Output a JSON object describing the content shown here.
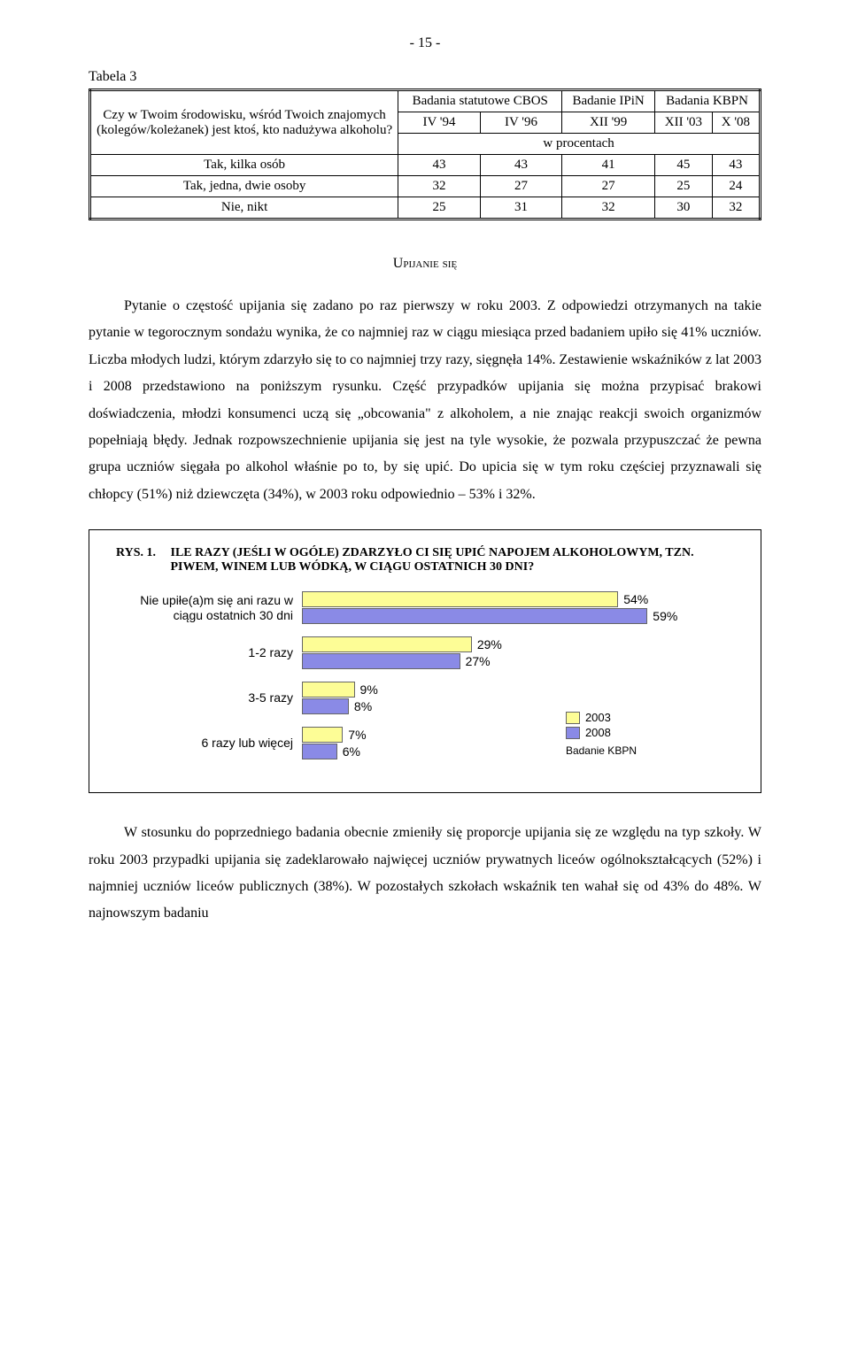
{
  "pageNumber": "- 15 -",
  "table": {
    "caption": "Tabela 3",
    "question": "Czy w Twoim środowisku, wśród Twoich znajomych (kolegów/koleżanek) jest ktoś, kto nadużywa alkoholu?",
    "header1": {
      "col1": "Badania statutowe CBOS",
      "col2": "Badanie IPiN",
      "col3": "Badania KBPN"
    },
    "header2": {
      "c1": "IV '94",
      "c2": "IV '96",
      "c3": "XII '99",
      "c4": "XII '03",
      "c5": "X '08"
    },
    "rowHeader": "w procentach",
    "rows": [
      {
        "label": "Tak, kilka osób",
        "v": [
          "43",
          "43",
          "41",
          "45",
          "43"
        ]
      },
      {
        "label": "Tak, jedna, dwie osoby",
        "v": [
          "32",
          "27",
          "27",
          "25",
          "24"
        ]
      },
      {
        "label": "Nie, nikt",
        "v": [
          "25",
          "31",
          "32",
          "30",
          "32"
        ]
      }
    ]
  },
  "sectionTitle": "Upijanie się",
  "para1": "Pytanie o częstość upijania się zadano po raz pierwszy w roku 2003. Z odpowiedzi otrzymanych na takie pytanie w tegorocznym sondażu wynika, że co najmniej raz w ciągu miesiąca przed badaniem upiło się 41% uczniów. Liczba młodych ludzi, którym zdarzyło się to co najmniej trzy razy, sięgnęła 14%. Zestawienie wskaźników z lat 2003 i 2008 przedstawiono na poniższym rysunku. Część przypadków upijania się można przypisać brakowi doświadczenia, młodzi konsumenci uczą się „obcowania\" z alkoholem, a nie znając reakcji swoich organizmów popełniają błędy. Jednak rozpowszechnienie upijania się jest na tyle wysokie, że pozwala przypuszczać że pewna grupa uczniów sięgała po alkohol właśnie po to, by się upić. Do upicia się w tym roku częściej przyznawali się chłopcy (51%) niż dziewczęta (34%), w 2003 roku odpowiednio – 53% i 32%.",
  "chart": {
    "rys": "RYS. 1.",
    "title": "ILE RAZY (JEŚLI W OGÓLE) ZDARZYŁO CI SIĘ UPIĆ NAPOJEM ALKOHOLOWYM, TZN. PIWEM, WINEM LUB WÓDKĄ, W CIĄGU OSTATNICH 30 DNI?",
    "maxPercent": 65,
    "colors": {
      "series2003": "#fdfd96",
      "series2008": "#8a8ae6",
      "border": "#666666"
    },
    "categories": [
      {
        "label": "Nie upiłe(a)m się ani razu w ciągu ostatnich 30 dni",
        "v2003": 54,
        "v2008": 59
      },
      {
        "label": "1-2 razy",
        "v2003": 29,
        "v2008": 27
      },
      {
        "label": "3-5 razy",
        "v2003": 9,
        "v2008": 8
      },
      {
        "label": "6 razy lub więcej",
        "v2003": 7,
        "v2008": 6
      }
    ],
    "legend": {
      "y2003": "2003",
      "y2008": "2008",
      "source": "Badanie KBPN"
    }
  },
  "para2": "W stosunku do poprzedniego badania obecnie zmieniły się proporcje upijania się ze względu na typ szkoły. W roku 2003 przypadki upijania się zadeklarowało najwięcej uczniów prywatnych liceów ogólnokształcących (52%) i najmniej uczniów liceów publicznych (38%). W pozostałych szkołach wskaźnik ten wahał się od 43% do 48%. W najnowszym badaniu"
}
